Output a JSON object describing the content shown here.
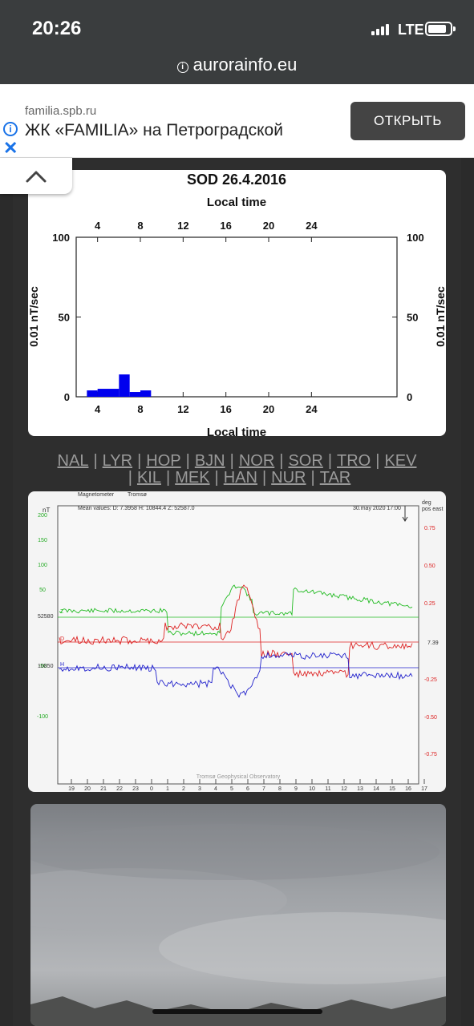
{
  "status_bar": {
    "time": "20:26",
    "network": "LTE"
  },
  "browser": {
    "url": "aurorainfo.eu"
  },
  "ad": {
    "domain": "familia.spb.ru",
    "title": "ЖК «FAMILIA» на Петроградской",
    "button": "ОТКРЫТЬ",
    "close_icon": "close-icon",
    "info_icon": "info-icon"
  },
  "collapse_icon": "chevron-up-icon",
  "pulsation_chart": {
    "chart_data": {
      "type": "bar",
      "title": "SOD 26.4.2016",
      "top_title": "Local time",
      "xlabel": "Local time",
      "ylabel": "0.01 nT/sec",
      "xlim": [
        2,
        32
      ],
      "ylim": [
        0,
        100
      ],
      "x_ticks": [
        "4",
        "8",
        "12",
        "16",
        "20",
        "24"
      ],
      "y_ticks": [
        "0",
        "50",
        "100"
      ],
      "bins": [
        [
          3,
          4,
          4
        ],
        [
          4,
          6,
          5
        ],
        [
          6,
          7,
          14
        ],
        [
          7,
          8,
          3
        ],
        [
          8,
          9,
          4
        ]
      ],
      "bar_color": "#0000ee"
    }
  },
  "stations": {
    "row1": [
      "NAL",
      "LYR",
      "HOP",
      "BJN",
      "NOR",
      "SOR",
      "TRO",
      "KEV"
    ],
    "row2": [
      "KIL",
      "MEK",
      "HAN",
      "NUR",
      "TAR"
    ],
    "separator": "|"
  },
  "magnetometer": {
    "header_left": "Magnetometer",
    "header_station": "Tromsø",
    "mean_values": "Mean values:  D: 7.3958    H: 10844.4    Z: 52587.0",
    "date": "30.may 2020 17:00",
    "left_unit": "nT",
    "right_unit_1": "deg",
    "right_unit_2": "pos east",
    "footer": "Tromsø Geophysical Observatory",
    "left_ticks": [
      "200",
      "150",
      "100",
      "50",
      "-50",
      "-100"
    ],
    "baseline_z": "52580",
    "baseline_h": "10850",
    "right_ticks": [
      "0.75",
      "0.50",
      "0.25",
      "-0.25",
      "-0.50",
      "-0.75"
    ],
    "right_value": "7.39",
    "hours": [
      "19",
      "20",
      "21",
      "22",
      "23",
      "0",
      "1",
      "2",
      "3",
      "4",
      "5",
      "6",
      "7",
      "8",
      "9",
      "10",
      "11",
      "12",
      "13",
      "14",
      "15",
      "16",
      "17"
    ],
    "series_labels": [
      "Z",
      "D",
      "H"
    ],
    "colors": {
      "Z": "#22bb22",
      "D": "#dd2222",
      "H": "#2222cc"
    }
  },
  "photo": {
    "description_icon": "sky-photo"
  }
}
